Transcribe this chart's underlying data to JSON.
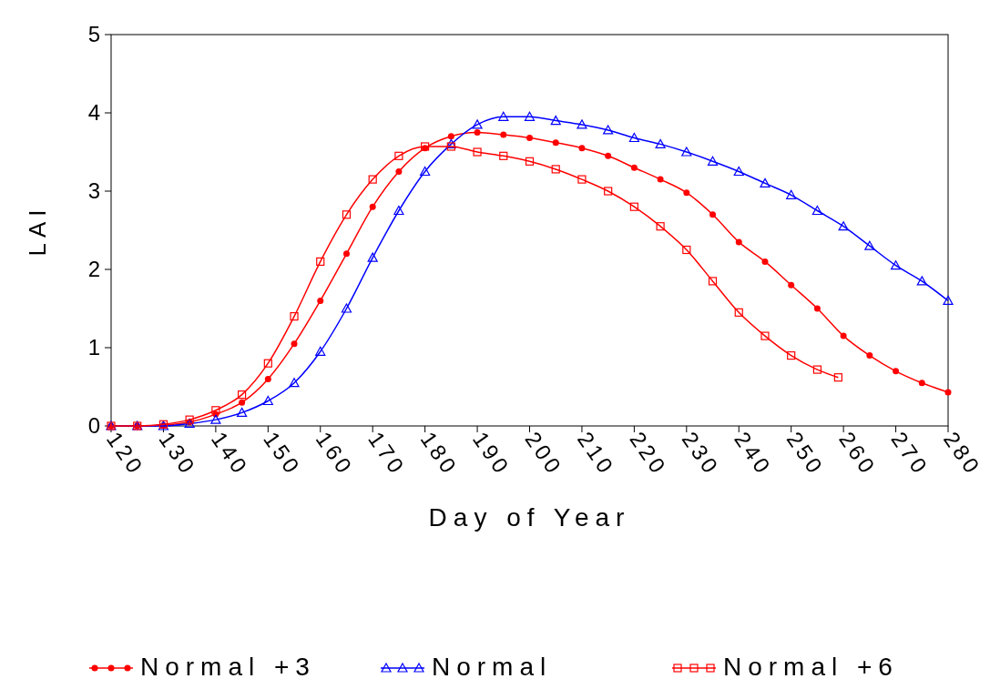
{
  "chart_data": {
    "type": "line",
    "xlabel": "Day of Year",
    "ylabel": "LAI",
    "xlim": [
      120,
      280
    ],
    "xticks": [
      120,
      130,
      140,
      150,
      160,
      170,
      180,
      190,
      200,
      210,
      220,
      230,
      240,
      250,
      260,
      270,
      280
    ],
    "ylim": [
      0,
      5
    ],
    "yticks": [
      0,
      1,
      2,
      3,
      4,
      5
    ],
    "grid": false,
    "legend": "bottom",
    "line_style": "solid",
    "series": [
      {
        "name": "Normal +3",
        "color": "#ff0000",
        "marker": "circle",
        "x": [
          120,
          125,
          130,
          135,
          140,
          145,
          150,
          155,
          160,
          165,
          170,
          175,
          180,
          185,
          190,
          195,
          200,
          205,
          210,
          215,
          220,
          225,
          230,
          235,
          240,
          245,
          250,
          255,
          260,
          265,
          270,
          275,
          280
        ],
        "values": [
          0,
          0,
          0.01,
          0.05,
          0.15,
          0.3,
          0.6,
          1.05,
          1.6,
          2.2,
          2.8,
          3.25,
          3.55,
          3.7,
          3.75,
          3.72,
          3.68,
          3.62,
          3.55,
          3.45,
          3.3,
          3.15,
          2.98,
          2.7,
          2.35,
          2.1,
          1.8,
          1.5,
          1.15,
          0.9,
          0.7,
          0.55,
          0.43
        ]
      },
      {
        "name": "Normal",
        "color": "#0000ff",
        "marker": "triangle",
        "x": [
          120,
          125,
          130,
          135,
          140,
          145,
          150,
          155,
          160,
          165,
          170,
          175,
          180,
          185,
          190,
          195,
          200,
          205,
          210,
          215,
          220,
          225,
          230,
          235,
          240,
          245,
          250,
          255,
          260,
          265,
          270,
          275,
          280
        ],
        "values": [
          0,
          0,
          0,
          0.03,
          0.08,
          0.17,
          0.32,
          0.55,
          0.95,
          1.5,
          2.15,
          2.75,
          3.25,
          3.6,
          3.85,
          3.95,
          3.95,
          3.9,
          3.85,
          3.78,
          3.68,
          3.6,
          3.5,
          3.38,
          3.25,
          3.1,
          2.95,
          2.75,
          2.55,
          2.3,
          2.05,
          1.85,
          1.6
        ]
      },
      {
        "name": "Normal +6",
        "color": "#ff0000",
        "marker": "square",
        "x": [
          120,
          125,
          130,
          135,
          140,
          145,
          150,
          155,
          160,
          165,
          170,
          175,
          180,
          185,
          190,
          195,
          200,
          205,
          210,
          215,
          220,
          225,
          230,
          235,
          240,
          245,
          250,
          255,
          259
        ],
        "values": [
          0,
          0,
          0.02,
          0.08,
          0.2,
          0.4,
          0.8,
          1.4,
          2.1,
          2.7,
          3.15,
          3.45,
          3.57,
          3.57,
          3.5,
          3.45,
          3.38,
          3.28,
          3.15,
          3,
          2.8,
          2.55,
          2.25,
          1.85,
          1.45,
          1.15,
          0.9,
          0.72,
          0.62
        ]
      }
    ]
  }
}
